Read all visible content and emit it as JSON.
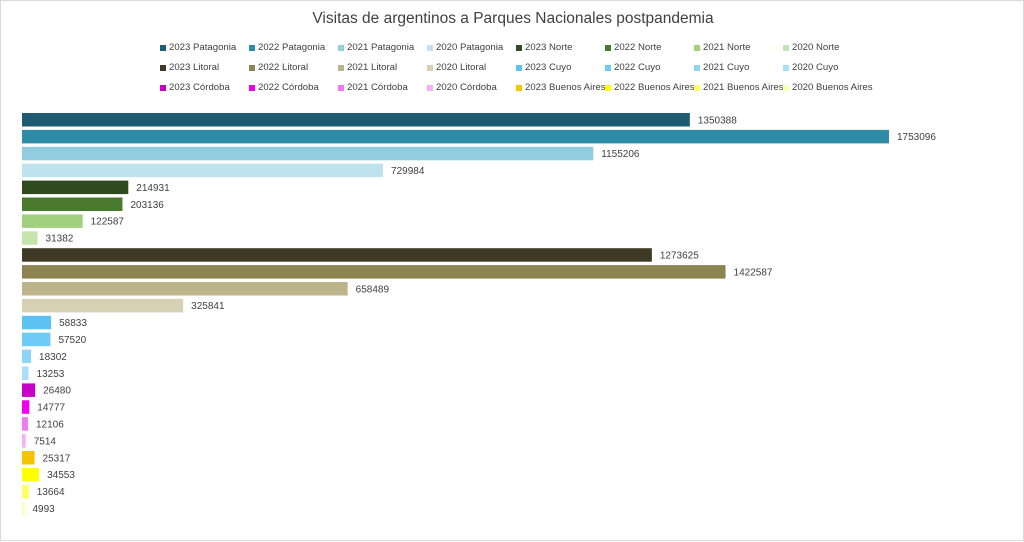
{
  "chart_data": {
    "type": "bar",
    "orientation": "horizontal",
    "title": "Visitas de argentinos a Parques Nacionales postpandemia",
    "xlim": [
      0,
      1800000
    ],
    "grid": false,
    "legend_position": "top",
    "data_labels": true,
    "series": [
      {
        "name": "2023 Patagonia",
        "value": 1350388,
        "color": "#1f5c73"
      },
      {
        "name": "2022 Patagonia",
        "value": 1753096,
        "color": "#2e8ca6"
      },
      {
        "name": "2021 Patagonia",
        "value": 1155206,
        "color": "#92cddf"
      },
      {
        "name": "2020 Patagonia",
        "value": 729984,
        "color": "#bfe3ee"
      },
      {
        "name": "2023 Norte",
        "value": 214931,
        "color": "#2e4a1e"
      },
      {
        "name": "2022 Norte",
        "value": 203136,
        "color": "#4a7a2e"
      },
      {
        "name": "2021 Norte",
        "value": 122587,
        "color": "#9fd17e"
      },
      {
        "name": "2020 Norte",
        "value": 31382,
        "color": "#c6e4b0"
      },
      {
        "name": "2023 Litoral",
        "value": 1273625,
        "color": "#3f3a26"
      },
      {
        "name": "2022 Litoral",
        "value": 1422587,
        "color": "#8c8350"
      },
      {
        "name": "2021 Litoral",
        "value": 658489,
        "color": "#bdb48c"
      },
      {
        "name": "2020 Litoral",
        "value": 325841,
        "color": "#d6d1b4"
      },
      {
        "name": "2023 Cuyo",
        "value": 58833,
        "color": "#5bc2f2"
      },
      {
        "name": "2022 Cuyo",
        "value": 57520,
        "color": "#6fcaf5"
      },
      {
        "name": "2021 Cuyo",
        "value": 18302,
        "color": "#8fd4f6"
      },
      {
        "name": "2020 Cuyo",
        "value": 13253,
        "color": "#a9def8"
      },
      {
        "name": "2023 Córdoba",
        "value": 26480,
        "color": "#c800c8"
      },
      {
        "name": "2022 Córdoba",
        "value": 14777,
        "color": "#f000f0"
      },
      {
        "name": "2021 Córdoba",
        "value": 12106,
        "color": "#f07af0"
      },
      {
        "name": "2020 Córdoba",
        "value": 7514,
        "color": "#f5b0f5"
      },
      {
        "name": "2023 Buenos Aires",
        "value": 25317,
        "color": "#f5c400"
      },
      {
        "name": "2022 Buenos Aires",
        "value": 34553,
        "color": "#ffff00"
      },
      {
        "name": "2021 Buenos Aires",
        "value": 13664,
        "color": "#ffff66"
      },
      {
        "name": "2020 Buenos Aires",
        "value": 4993,
        "color": "#ffffb3"
      }
    ]
  }
}
